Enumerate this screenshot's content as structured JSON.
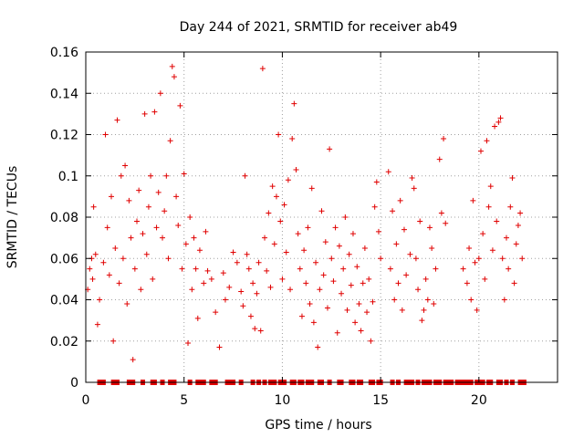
{
  "chart_data": {
    "type": "scatter",
    "title": "Day 244 of 2021, SRMTID for receiver ab49",
    "xlabel": "GPS time / hours",
    "ylabel": "SRMTID / TECUs",
    "xlim": [
      0,
      24
    ],
    "ylim": [
      0,
      0.16
    ],
    "xticks": [
      0,
      5,
      10,
      15,
      20
    ],
    "xtick_labels": [
      "0",
      "5",
      "10",
      "15",
      "20"
    ],
    "yticks": [
      0,
      0.02,
      0.04,
      0.06,
      0.08,
      0.1,
      0.12,
      0.14,
      0.16
    ],
    "ytick_labels": [
      "0",
      "0.02",
      "0.04",
      "0.06",
      "0.08",
      "0.1",
      "0.12",
      "0.14",
      "0.16"
    ],
    "grid": true,
    "marker_color": "#e00000",
    "series": [
      {
        "name": "SRMTID",
        "marker": "plus",
        "points": [
          [
            0.1,
            0.045
          ],
          [
            0.2,
            0.055
          ],
          [
            0.3,
            0.06
          ],
          [
            0.35,
            0.05
          ],
          [
            0.4,
            0.085
          ],
          [
            0.5,
            0.062
          ],
          [
            0.6,
            0.028
          ],
          [
            0.7,
            0.04
          ],
          [
            0.9,
            0.058
          ],
          [
            1.0,
            0.12
          ],
          [
            1.1,
            0.075
          ],
          [
            1.2,
            0.052
          ],
          [
            1.3,
            0.09
          ],
          [
            1.4,
            0.02
          ],
          [
            1.5,
            0.065
          ],
          [
            1.6,
            0.127
          ],
          [
            1.7,
            0.048
          ],
          [
            1.8,
            0.1
          ],
          [
            1.9,
            0.06
          ],
          [
            2.0,
            0.105
          ],
          [
            2.1,
            0.038
          ],
          [
            2.2,
            0.088
          ],
          [
            2.3,
            0.07
          ],
          [
            2.4,
            0.011
          ],
          [
            2.5,
            0.055
          ],
          [
            2.6,
            0.078
          ],
          [
            2.7,
            0.093
          ],
          [
            2.8,
            0.045
          ],
          [
            2.9,
            0.072
          ],
          [
            3.0,
            0.13
          ],
          [
            3.1,
            0.062
          ],
          [
            3.2,
            0.085
          ],
          [
            3.3,
            0.1
          ],
          [
            3.4,
            0.05
          ],
          [
            3.5,
            0.131
          ],
          [
            3.6,
            0.075
          ],
          [
            3.7,
            0.092
          ],
          [
            3.8,
            0.14
          ],
          [
            3.9,
            0.07
          ],
          [
            4.0,
            0.083
          ],
          [
            4.1,
            0.1
          ],
          [
            4.2,
            0.06
          ],
          [
            4.3,
            0.117
          ],
          [
            4.4,
            0.153
          ],
          [
            4.5,
            0.148
          ],
          [
            4.6,
            0.09
          ],
          [
            4.7,
            0.076
          ],
          [
            4.8,
            0.134
          ],
          [
            4.9,
            0.055
          ],
          [
            5.0,
            0.101
          ],
          [
            5.1,
            0.067
          ],
          [
            5.2,
            0.019
          ],
          [
            5.3,
            0.08
          ],
          [
            5.4,
            0.045
          ],
          [
            5.5,
            0.07
          ],
          [
            5.6,
            0.055
          ],
          [
            5.7,
            0.031
          ],
          [
            5.8,
            0.064
          ],
          [
            6.0,
            0.048
          ],
          [
            6.1,
            0.073
          ],
          [
            6.2,
            0.054
          ],
          [
            6.4,
            0.05
          ],
          [
            6.6,
            0.034
          ],
          [
            6.8,
            0.017
          ],
          [
            7.0,
            0.053
          ],
          [
            7.1,
            0.04
          ],
          [
            7.3,
            0.046
          ],
          [
            7.5,
            0.063
          ],
          [
            7.7,
            0.058
          ],
          [
            7.9,
            0.044
          ],
          [
            8.0,
            0.037
          ],
          [
            8.1,
            0.1
          ],
          [
            8.2,
            0.062
          ],
          [
            8.3,
            0.055
          ],
          [
            8.4,
            0.032
          ],
          [
            8.5,
            0.048
          ],
          [
            8.6,
            0.026
          ],
          [
            8.7,
            0.043
          ],
          [
            8.8,
            0.058
          ],
          [
            8.9,
            0.025
          ],
          [
            9.0,
            0.152
          ],
          [
            9.1,
            0.07
          ],
          [
            9.2,
            0.054
          ],
          [
            9.3,
            0.082
          ],
          [
            9.4,
            0.046
          ],
          [
            9.5,
            0.095
          ],
          [
            9.6,
            0.067
          ],
          [
            9.7,
            0.09
          ],
          [
            9.8,
            0.12
          ],
          [
            9.9,
            0.078
          ],
          [
            10.0,
            0.05
          ],
          [
            10.1,
            0.086
          ],
          [
            10.2,
            0.063
          ],
          [
            10.3,
            0.098
          ],
          [
            10.4,
            0.045
          ],
          [
            10.5,
            0.118
          ],
          [
            10.6,
            0.135
          ],
          [
            10.7,
            0.103
          ],
          [
            10.8,
            0.072
          ],
          [
            10.9,
            0.055
          ],
          [
            11.0,
            0.032
          ],
          [
            11.1,
            0.064
          ],
          [
            11.2,
            0.048
          ],
          [
            11.3,
            0.075
          ],
          [
            11.4,
            0.038
          ],
          [
            11.5,
            0.094
          ],
          [
            11.6,
            0.029
          ],
          [
            11.7,
            0.058
          ],
          [
            11.8,
            0.017
          ],
          [
            11.9,
            0.045
          ],
          [
            12.0,
            0.083
          ],
          [
            12.1,
            0.052
          ],
          [
            12.2,
            0.068
          ],
          [
            12.3,
            0.036
          ],
          [
            12.4,
            0.113
          ],
          [
            12.5,
            0.06
          ],
          [
            12.6,
            0.049
          ],
          [
            12.7,
            0.075
          ],
          [
            12.8,
            0.024
          ],
          [
            12.9,
            0.066
          ],
          [
            13.0,
            0.043
          ],
          [
            13.1,
            0.055
          ],
          [
            13.2,
            0.08
          ],
          [
            13.3,
            0.035
          ],
          [
            13.4,
            0.062
          ],
          [
            13.5,
            0.047
          ],
          [
            13.6,
            0.072
          ],
          [
            13.7,
            0.029
          ],
          [
            13.8,
            0.056
          ],
          [
            13.9,
            0.038
          ],
          [
            14.0,
            0.025
          ],
          [
            14.1,
            0.048
          ],
          [
            14.2,
            0.065
          ],
          [
            14.3,
            0.034
          ],
          [
            14.4,
            0.05
          ],
          [
            14.5,
            0.02
          ],
          [
            14.6,
            0.039
          ],
          [
            14.7,
            0.085
          ],
          [
            14.8,
            0.097
          ],
          [
            14.9,
            0.073
          ],
          [
            15.0,
            0.06
          ],
          [
            15.4,
            0.102
          ],
          [
            15.5,
            0.055
          ],
          [
            15.6,
            0.083
          ],
          [
            15.7,
            0.04
          ],
          [
            15.8,
            0.067
          ],
          [
            15.9,
            0.048
          ],
          [
            16.0,
            0.088
          ],
          [
            16.1,
            0.035
          ],
          [
            16.2,
            0.074
          ],
          [
            16.3,
            0.052
          ],
          [
            16.5,
            0.062
          ],
          [
            16.6,
            0.099
          ],
          [
            16.7,
            0.094
          ],
          [
            16.8,
            0.06
          ],
          [
            16.9,
            0.045
          ],
          [
            17.0,
            0.078
          ],
          [
            17.1,
            0.03
          ],
          [
            17.2,
            0.035
          ],
          [
            17.3,
            0.05
          ],
          [
            17.4,
            0.04
          ],
          [
            17.5,
            0.075
          ],
          [
            17.6,
            0.065
          ],
          [
            17.7,
            0.038
          ],
          [
            17.8,
            0.055
          ],
          [
            18.0,
            0.108
          ],
          [
            18.1,
            0.082
          ],
          [
            18.2,
            0.118
          ],
          [
            18.3,
            0.077
          ],
          [
            19.2,
            0.055
          ],
          [
            19.4,
            0.048
          ],
          [
            19.5,
            0.065
          ],
          [
            19.6,
            0.04
          ],
          [
            19.7,
            0.088
          ],
          [
            19.8,
            0.058
          ],
          [
            19.9,
            0.035
          ],
          [
            20.0,
            0.06
          ],
          [
            20.1,
            0.112
          ],
          [
            20.2,
            0.072
          ],
          [
            20.3,
            0.05
          ],
          [
            20.4,
            0.117
          ],
          [
            20.5,
            0.085
          ],
          [
            20.6,
            0.095
          ],
          [
            20.7,
            0.064
          ],
          [
            20.8,
            0.124
          ],
          [
            20.9,
            0.078
          ],
          [
            21.0,
            0.126
          ],
          [
            21.1,
            0.128
          ],
          [
            21.2,
            0.06
          ],
          [
            21.3,
            0.04
          ],
          [
            21.4,
            0.07
          ],
          [
            21.5,
            0.055
          ],
          [
            21.6,
            0.085
          ],
          [
            21.7,
            0.099
          ],
          [
            21.8,
            0.048
          ],
          [
            21.9,
            0.067
          ],
          [
            22.0,
            0.076
          ],
          [
            22.1,
            0.082
          ],
          [
            22.2,
            0.06
          ]
        ]
      }
    ],
    "zero_markers": [
      0.7,
      0.9,
      1.4,
      1.6,
      2.2,
      2.4,
      2.9,
      3.4,
      3.5,
      3.9,
      4.3,
      4.5,
      5.3,
      5.7,
      5.9,
      6.0,
      6.4,
      6.6,
      7.2,
      7.4,
      7.5,
      7.9,
      8.5,
      8.8,
      9.1,
      9.4,
      9.5,
      9.6,
      9.9,
      10.1,
      10.5,
      10.6,
      10.9,
      11.0,
      11.3,
      11.4,
      11.5,
      11.9,
      12.0,
      12.4,
      12.9,
      13.0,
      13.5,
      13.6,
      13.9,
      14.0,
      14.5,
      14.6,
      14.9,
      15.0,
      15.6,
      15.9,
      16.3,
      16.5,
      16.6,
      16.9,
      17.2,
      17.4,
      17.5,
      17.8,
      18.0,
      18.3,
      18.5,
      18.6,
      18.9,
      19.1,
      19.3,
      19.4,
      19.6,
      19.9,
      20.1,
      20.2,
      20.5,
      20.6,
      21.0,
      21.1,
      21.4,
      21.7,
      22.1,
      22.3
    ]
  }
}
